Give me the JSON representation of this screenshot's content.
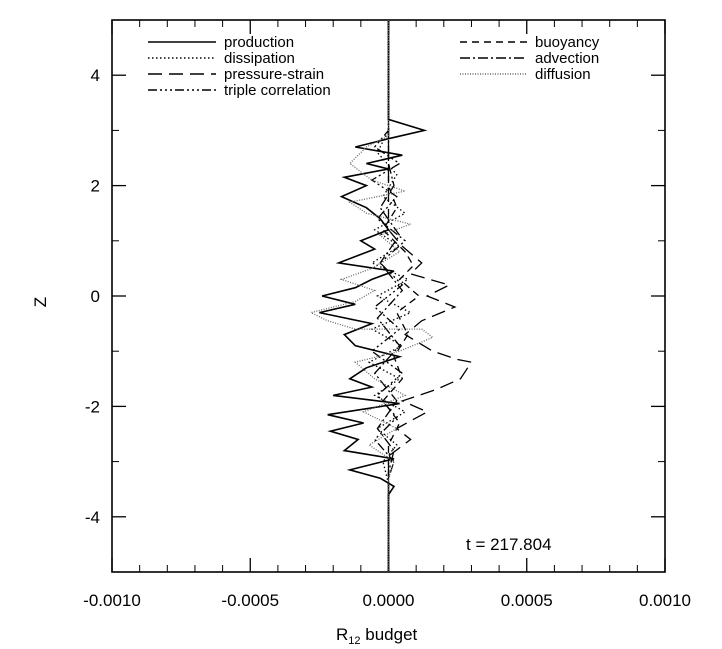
{
  "chart_data": {
    "type": "line",
    "orientation": "profile",
    "xlabel": "R",
    "xlabel_sub": "12",
    "xlabel_suffix": " budget",
    "ylabel": "Z",
    "xlim": [
      -0.001,
      0.001
    ],
    "ylim": [
      -5,
      5
    ],
    "x_ticks": [
      "-0.0010",
      "-0.0005",
      "0.0000",
      "0.0005",
      "0.0010"
    ],
    "x_tick_values": [
      -0.001,
      -0.0005,
      0.0,
      0.0005,
      0.001
    ],
    "y_ticks": [
      "-4",
      "-2",
      "0",
      "2",
      "4"
    ],
    "y_tick_values": [
      -4,
      -2,
      0,
      2,
      4
    ],
    "grid": false,
    "legend_placement": "top",
    "annotation": "t = 217.804",
    "series": [
      {
        "name": "production",
        "dash": "",
        "points": [
          [
            0.0,
            5.0
          ],
          [
            0.0,
            3.2
          ],
          [
            0.00013,
            3.0
          ],
          [
            0.0,
            2.85
          ],
          [
            -0.00012,
            2.7
          ],
          [
            5e-05,
            2.55
          ],
          [
            -8e-05,
            2.4
          ],
          [
            0.0,
            2.3
          ],
          [
            -0.00016,
            2.15
          ],
          [
            -8e-05,
            2.0
          ],
          [
            -0.00017,
            1.8
          ],
          [
            -8e-05,
            1.6
          ],
          [
            -3e-05,
            1.4
          ],
          [
            0.0,
            1.2
          ],
          [
            -0.0001,
            1.0
          ],
          [
            -5e-05,
            0.85
          ],
          [
            -0.00018,
            0.6
          ],
          [
            2e-05,
            0.45
          ],
          [
            -6e-05,
            0.3
          ],
          [
            -0.00012,
            0.15
          ],
          [
            -0.00024,
            0.0
          ],
          [
            -0.00012,
            -0.15
          ],
          [
            -0.00025,
            -0.3
          ],
          [
            -6e-05,
            -0.5
          ],
          [
            -0.00016,
            -0.7
          ],
          [
            -0.00012,
            -0.9
          ],
          [
            4e-05,
            -1.1
          ],
          [
            -8e-05,
            -1.3
          ],
          [
            -0.00014,
            -1.5
          ],
          [
            -6e-05,
            -1.65
          ],
          [
            -0.0002,
            -1.8
          ],
          [
            4e-05,
            -1.95
          ],
          [
            -0.00022,
            -2.15
          ],
          [
            -9e-05,
            -2.3
          ],
          [
            -0.00021,
            -2.45
          ],
          [
            -0.00011,
            -2.6
          ],
          [
            -0.00016,
            -2.8
          ],
          [
            2e-05,
            -2.95
          ],
          [
            -0.00014,
            -3.15
          ],
          [
            -3e-05,
            -3.3
          ],
          [
            2e-05,
            -3.45
          ],
          [
            0.0,
            -3.6
          ],
          [
            0.0,
            -5.0
          ]
        ]
      },
      {
        "name": "dissipation",
        "dash": "1.5,2.5",
        "points": [
          [
            0.0,
            5.0
          ],
          [
            0.0,
            3.0
          ],
          [
            -4e-05,
            2.6
          ],
          [
            3e-05,
            2.2
          ],
          [
            -2e-05,
            1.8
          ],
          [
            6e-05,
            1.5
          ],
          [
            -5e-05,
            1.2
          ],
          [
            4e-05,
            0.9
          ],
          [
            -6e-05,
            0.6
          ],
          [
            7e-05,
            0.3
          ],
          [
            -4e-05,
            0.0
          ],
          [
            8e-05,
            -0.3
          ],
          [
            -6e-05,
            -0.6
          ],
          [
            5e-05,
            -0.9
          ],
          [
            -7e-05,
            -1.2
          ],
          [
            4e-05,
            -1.5
          ],
          [
            -5e-05,
            -1.8
          ],
          [
            6e-05,
            -2.1
          ],
          [
            -4e-05,
            -2.4
          ],
          [
            3e-05,
            -2.7
          ],
          [
            -2e-05,
            -3.0
          ],
          [
            0.0,
            -3.4
          ],
          [
            0.0,
            -5.0
          ]
        ]
      },
      {
        "name": "pressure-strain",
        "dash": "14,7",
        "points": [
          [
            0.0,
            5.0
          ],
          [
            0.0,
            1.2
          ],
          [
            5e-05,
            0.9
          ],
          [
            0.00012,
            0.6
          ],
          [
            8e-05,
            0.4
          ],
          [
            0.00022,
            0.2
          ],
          [
            0.00014,
            0.0
          ],
          [
            0.00024,
            -0.2
          ],
          [
            0.00012,
            -0.45
          ],
          [
            6e-05,
            -0.7
          ],
          [
            0.00016,
            -1.0
          ],
          [
            0.00025,
            -1.15
          ],
          [
            0.0003,
            -1.2
          ],
          [
            0.00026,
            -1.5
          ],
          [
            0.00017,
            -1.7
          ],
          [
            5e-05,
            -1.9
          ],
          [
            0.00014,
            -2.1
          ],
          [
            3e-05,
            -2.4
          ],
          [
            8e-05,
            -2.6
          ],
          [
            0.0,
            -2.9
          ],
          [
            0.0,
            -5.0
          ]
        ]
      },
      {
        "name": "triple correlation",
        "dash": "9,3,2,3,2,3,2,3",
        "points": [
          [
            0.0,
            5.0
          ],
          [
            0.0,
            3.0
          ],
          [
            -5e-05,
            2.7
          ],
          [
            4e-05,
            2.4
          ],
          [
            -6e-05,
            2.1
          ],
          [
            3e-05,
            1.8
          ],
          [
            -4e-05,
            1.4
          ],
          [
            6e-05,
            1.0
          ],
          [
            -3e-05,
            0.6
          ],
          [
            5e-05,
            0.2
          ],
          [
            -5e-05,
            -0.2
          ],
          [
            4e-05,
            -0.6
          ],
          [
            -6e-05,
            -1.0
          ],
          [
            5e-05,
            -1.4
          ],
          [
            -4e-05,
            -1.8
          ],
          [
            3e-05,
            -2.2
          ],
          [
            -5e-05,
            -2.6
          ],
          [
            2e-05,
            -3.0
          ],
          [
            0.0,
            -3.3
          ],
          [
            0.0,
            -5.0
          ]
        ]
      },
      {
        "name": "buoyancy",
        "dash": "7,5",
        "points": [
          [
            0.0,
            5.0
          ],
          [
            0.0,
            2.0
          ],
          [
            3e-05,
            1.6
          ],
          [
            -2e-05,
            1.2
          ],
          [
            6e-05,
            0.8
          ],
          [
            9e-05,
            0.55
          ],
          [
            4e-05,
            0.3
          ],
          [
            0.00011,
            0.0
          ],
          [
            3e-05,
            -0.3
          ],
          [
            7e-05,
            -0.7
          ],
          [
            2e-05,
            -1.1
          ],
          [
            5e-05,
            -1.5
          ],
          [
            -2e-05,
            -1.9
          ],
          [
            4e-05,
            -2.3
          ],
          [
            0.0,
            -2.7
          ],
          [
            0.0,
            -5.0
          ]
        ]
      },
      {
        "name": "advection",
        "dash": "10,3,2,3",
        "points": [
          [
            0.0,
            5.0
          ],
          [
            0.0,
            2.4
          ],
          [
            2e-05,
            2.0
          ],
          [
            -3e-05,
            1.6
          ],
          [
            4e-05,
            1.1
          ],
          [
            -3e-05,
            0.6
          ],
          [
            5e-05,
            0.1
          ],
          [
            -4e-05,
            -0.4
          ],
          [
            4e-05,
            -0.9
          ],
          [
            -5e-05,
            -1.4
          ],
          [
            3e-05,
            -1.9
          ],
          [
            -4e-05,
            -2.4
          ],
          [
            2e-05,
            -2.8
          ],
          [
            0.0,
            -3.2
          ],
          [
            0.0,
            -5.0
          ]
        ]
      },
      {
        "name": "diffusion",
        "dash": "1,1.5",
        "points": [
          [
            0.0,
            5.0
          ],
          [
            0.0,
            2.9
          ],
          [
            -8e-05,
            2.7
          ],
          [
            -0.00014,
            2.4
          ],
          [
            -6e-05,
            2.1
          ],
          [
            6e-05,
            1.9
          ],
          [
            -0.00014,
            1.7
          ],
          [
            -8e-05,
            1.5
          ],
          [
            8e-05,
            1.3
          ],
          [
            -3e-05,
            1.1
          ],
          [
            4e-05,
            0.8
          ],
          [
            -6e-05,
            0.5
          ],
          [
            -0.00017,
            0.3
          ],
          [
            -5e-05,
            0.1
          ],
          [
            -0.00012,
            -0.1
          ],
          [
            -0.00028,
            -0.3
          ],
          [
            -0.00022,
            -0.45
          ],
          [
            -0.00012,
            -0.6
          ],
          [
            0.00012,
            -0.6
          ],
          [
            0.00016,
            -0.75
          ],
          [
            4e-05,
            -1.0
          ],
          [
            -0.00012,
            -1.2
          ],
          [
            -5e-05,
            -1.5
          ],
          [
            6e-05,
            -1.8
          ],
          [
            -9e-05,
            -2.1
          ],
          [
            3e-05,
            -2.4
          ],
          [
            -7e-05,
            -2.7
          ],
          [
            2e-05,
            -3.0
          ],
          [
            0.0,
            -3.3
          ],
          [
            0.0,
            -5.0
          ]
        ]
      }
    ]
  }
}
